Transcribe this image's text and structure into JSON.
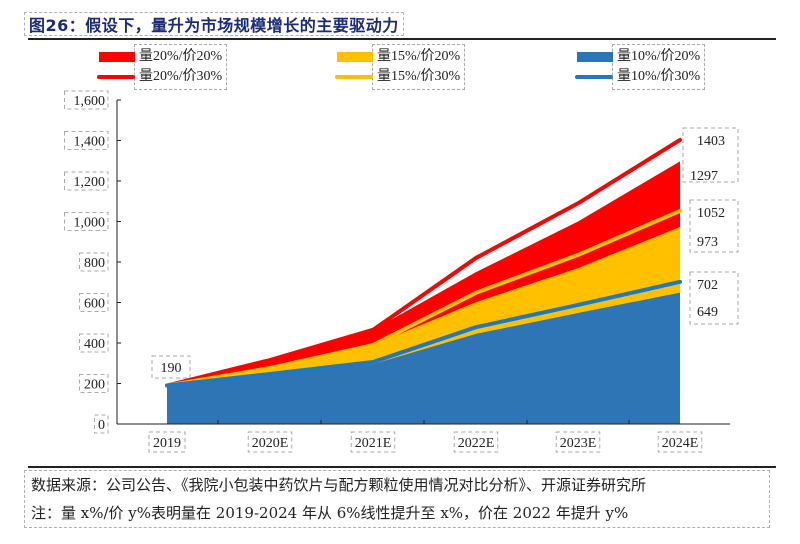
{
  "title": "图26：假设下，量升为市场规模增长的主要驱动力",
  "chart_data": {
    "type": "area",
    "title": "图26：假设下，量升为市场规模增长的主要驱动力",
    "xlabel": "",
    "ylabel": "",
    "categories": [
      "2019",
      "2020E",
      "2021E",
      "2022E",
      "2023E",
      "2024E"
    ],
    "ylim": [
      0,
      1600
    ],
    "yticks": [
      0,
      200,
      400,
      600,
      800,
      1000,
      1200,
      1400,
      1600
    ],
    "ytick_labels": [
      "0",
      "200",
      "400",
      "600",
      "800",
      "1,000",
      "1,200",
      "1,400",
      "1,600"
    ],
    "grid": false,
    "legend_position": "top",
    "series": [
      {
        "name": "量20%/价20%",
        "kind": "area",
        "color": "#FF0000",
        "values": [
          190,
          316,
          465,
          750,
          1000,
          1297
        ]
      },
      {
        "name": "量15%/价20%",
        "kind": "area",
        "color": "#FFC000",
        "values": [
          190,
          276,
          390,
          602,
          770,
          973
        ]
      },
      {
        "name": "量10%/价20%",
        "kind": "area",
        "color": "#2E75B6",
        "values": [
          190,
          247,
          296,
          445,
          548,
          649
        ]
      },
      {
        "name": "量20%/价30%",
        "kind": "line",
        "color": "#FF0000",
        "values": [
          190,
          316,
          465,
          820,
          1090,
          1403
        ]
      },
      {
        "name": "量15%/价30%",
        "kind": "line",
        "color": "#FFC000",
        "values": [
          190,
          276,
          390,
          648,
          835,
          1052
        ]
      },
      {
        "name": "量10%/价30%",
        "kind": "line",
        "color": "#1F78C0",
        "values": [
          190,
          247,
          306,
          478,
          588,
          702
        ]
      }
    ],
    "annotations": [
      {
        "text": "190",
        "x": "2019",
        "y": 190
      },
      {
        "text": "1403",
        "x": "2024E",
        "y": 1403
      },
      {
        "text": "1297",
        "x": "2024E",
        "y": 1297
      },
      {
        "text": "1052",
        "x": "2024E",
        "y": 1052
      },
      {
        "text": "973",
        "x": "2024E",
        "y": 973
      },
      {
        "text": "702",
        "x": "2024E",
        "y": 702
      },
      {
        "text": "649",
        "x": "2024E",
        "y": 649
      }
    ]
  },
  "legend": [
    {
      "label": "量20%/价20%",
      "kind": "area",
      "color": "#FF0000"
    },
    {
      "label": "量20%/价30%",
      "kind": "line",
      "color": "#FF0000"
    },
    {
      "label": "量15%/价20%",
      "kind": "area",
      "color": "#FFC000"
    },
    {
      "label": "量15%/价30%",
      "kind": "line",
      "color": "#FFC000"
    },
    {
      "label": "量10%/价20%",
      "kind": "area",
      "color": "#2E75B6"
    },
    {
      "label": "量10%/价30%",
      "kind": "line",
      "color": "#1F78C0"
    }
  ],
  "footer": {
    "source": "数据来源：公司公告、《我院小包装中药饮片与配方颗粒使用情况对比分析》、开源证券研究所",
    "note": "注：量 x%/价 y%表明量在 2019-2024 年从 6%线性提升至 x%，价在 2022 年提升 y%"
  }
}
